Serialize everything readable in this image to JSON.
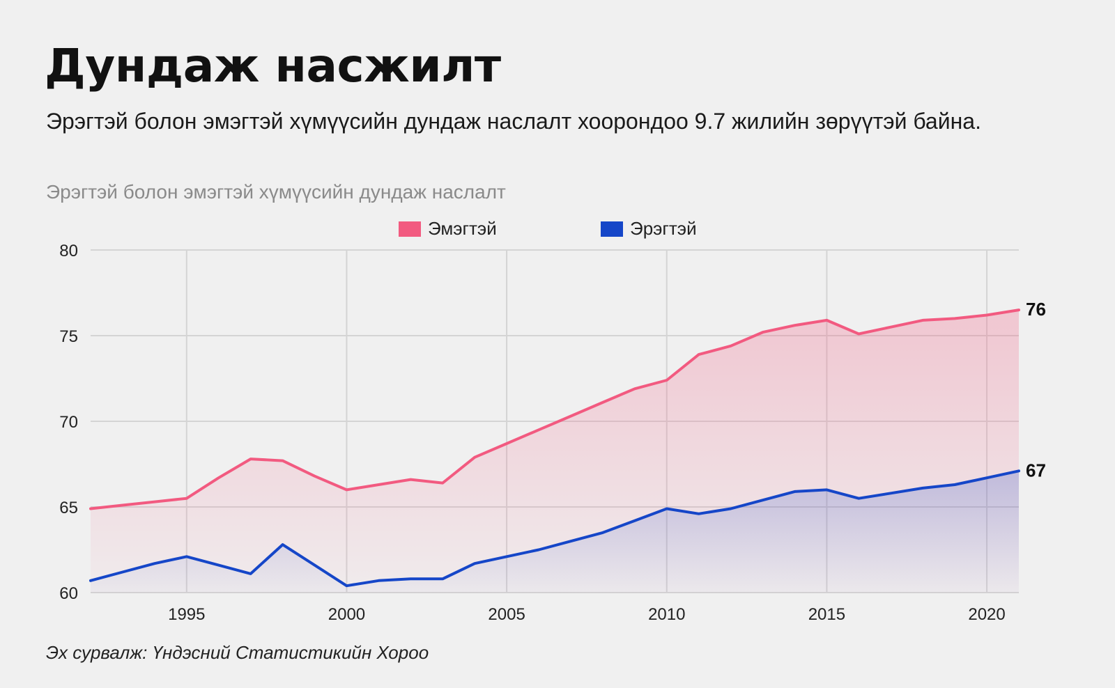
{
  "title": "Дундаж насжилт",
  "subtitle": "Эрэгтэй болон эмэгтэй хүмүүсийн дундаж наслалт хоорондоо 9.7 жилийн зөрүүтэй байна.",
  "chart_caption": "Эрэгтэй болон эмэгтэй хүмүүсийн дундаж наслалт",
  "source": "Эх сурвалж: Үндэсний Статистикийн Хороо",
  "colors": {
    "female": "#f25a80",
    "male": "#1546c8",
    "background": "#f0f0f0",
    "grid": "#d4d4d4"
  },
  "chart_data": {
    "type": "area",
    "title": "Эрэгтэй болон эмэгтэй хүмүүсийн дундаж наслалт",
    "xlabel": "",
    "ylabel": "",
    "xlim": [
      1992,
      2021
    ],
    "ylim": [
      60,
      80
    ],
    "x_ticks": [
      1995,
      2000,
      2005,
      2010,
      2015,
      2020
    ],
    "y_ticks": [
      60,
      65,
      70,
      75,
      80
    ],
    "grid": true,
    "legend_position": "top-center",
    "x": [
      1992,
      1993,
      1994,
      1995,
      1996,
      1997,
      1998,
      1999,
      2000,
      2001,
      2002,
      2003,
      2004,
      2005,
      2006,
      2007,
      2008,
      2009,
      2010,
      2011,
      2012,
      2013,
      2014,
      2015,
      2016,
      2017,
      2018,
      2019,
      2020,
      2021
    ],
    "series": [
      {
        "name": "Эмэгтэй",
        "color": "#f25a80",
        "values": [
          64.9,
          65.1,
          65.3,
          65.5,
          66.7,
          67.8,
          67.7,
          66.8,
          66.0,
          66.3,
          66.6,
          66.4,
          67.9,
          68.7,
          69.5,
          70.3,
          71.1,
          71.9,
          72.4,
          73.9,
          74.4,
          75.2,
          75.6,
          75.9,
          75.1,
          75.5,
          75.9,
          76.0,
          76.2,
          76.5
        ],
        "end_label": "76"
      },
      {
        "name": "Эрэгтэй",
        "color": "#1546c8",
        "values": [
          60.7,
          61.2,
          61.7,
          62.1,
          61.6,
          61.1,
          62.8,
          61.6,
          60.4,
          60.7,
          60.8,
          60.8,
          61.7,
          62.1,
          62.5,
          63.0,
          63.5,
          64.2,
          64.9,
          64.6,
          64.9,
          65.4,
          65.9,
          66.0,
          65.5,
          65.8,
          66.1,
          66.3,
          66.7,
          67.1
        ],
        "end_label": "67"
      }
    ]
  }
}
